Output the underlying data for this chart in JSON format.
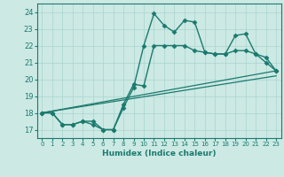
{
  "title": "",
  "xlabel": "Humidex (Indice chaleur)",
  "ylabel": "",
  "background_color": "#cce9e4",
  "grid_color": "#aad4ce",
  "line_color": "#1a7a6e",
  "xlim": [
    -0.5,
    23.5
  ],
  "ylim": [
    16.5,
    24.5
  ],
  "yticks": [
    17,
    18,
    19,
    20,
    21,
    22,
    23,
    24
  ],
  "xticks": [
    0,
    1,
    2,
    3,
    4,
    5,
    6,
    7,
    8,
    9,
    10,
    11,
    12,
    13,
    14,
    15,
    16,
    17,
    18,
    19,
    20,
    21,
    22,
    23
  ],
  "series": [
    {
      "x": [
        0,
        1,
        2,
        3,
        4,
        5,
        6,
        7,
        8,
        9,
        10,
        11,
        12,
        13,
        14,
        15,
        16,
        17,
        18,
        19,
        20,
        21,
        22,
        23
      ],
      "y": [
        18.0,
        18.0,
        17.3,
        17.3,
        17.5,
        17.5,
        17.0,
        17.0,
        18.3,
        19.5,
        22.0,
        23.9,
        23.2,
        22.8,
        23.5,
        23.4,
        21.6,
        21.5,
        21.5,
        22.6,
        22.7,
        21.5,
        21.3,
        20.5
      ],
      "marker": "D",
      "markersize": 2.5,
      "linewidth": 1.0
    },
    {
      "x": [
        0,
        1,
        2,
        3,
        4,
        5,
        6,
        7,
        8,
        9,
        10,
        11,
        12,
        13,
        14,
        15,
        16,
        17,
        18,
        19,
        20,
        21,
        22,
        23
      ],
      "y": [
        18.0,
        18.0,
        17.3,
        17.3,
        17.5,
        17.3,
        17.0,
        17.0,
        18.5,
        19.7,
        19.6,
        22.0,
        22.0,
        22.0,
        22.0,
        21.7,
        21.6,
        21.5,
        21.5,
        21.7,
        21.7,
        21.5,
        21.0,
        20.5
      ],
      "marker": "D",
      "markersize": 2.5,
      "linewidth": 1.0
    },
    {
      "x": [
        0,
        23
      ],
      "y": [
        18.0,
        20.5
      ],
      "marker": null,
      "markersize": 0,
      "linewidth": 0.9
    },
    {
      "x": [
        0,
        23
      ],
      "y": [
        18.0,
        20.2
      ],
      "marker": null,
      "markersize": 0,
      "linewidth": 0.9
    }
  ]
}
